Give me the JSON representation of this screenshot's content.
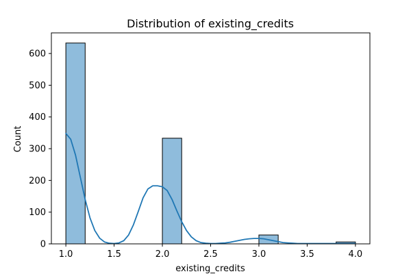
{
  "chart_data": {
    "type": "bar",
    "title": "Distribution of existing_credits",
    "xlabel": "existing_credits",
    "ylabel": "Count",
    "xlim": [
      0.85,
      4.15
    ],
    "ylim": [
      0,
      665
    ],
    "x_ticks": [
      1.0,
      1.5,
      2.0,
      2.5,
      3.0,
      3.5,
      4.0
    ],
    "x_tick_labels": [
      "1.0",
      "1.5",
      "2.0",
      "2.5",
      "3.0",
      "3.5",
      "4.0"
    ],
    "y_ticks": [
      0,
      100,
      200,
      300,
      400,
      500,
      600
    ],
    "y_tick_labels": [
      "0",
      "100",
      "200",
      "300",
      "400",
      "500",
      "600"
    ],
    "bins": [
      {
        "x0": 1.0,
        "x1": 1.2,
        "count": 633
      },
      {
        "x0": 1.2,
        "x1": 1.4,
        "count": 0
      },
      {
        "x0": 1.4,
        "x1": 1.6,
        "count": 0
      },
      {
        "x0": 1.6,
        "x1": 1.8,
        "count": 0
      },
      {
        "x0": 1.8,
        "x1": 2.0,
        "count": 0
      },
      {
        "x0": 2.0,
        "x1": 2.2,
        "count": 333
      },
      {
        "x0": 2.2,
        "x1": 2.4,
        "count": 0
      },
      {
        "x0": 2.4,
        "x1": 2.6,
        "count": 0
      },
      {
        "x0": 2.6,
        "x1": 2.8,
        "count": 0
      },
      {
        "x0": 2.8,
        "x1": 3.0,
        "count": 0
      },
      {
        "x0": 3.0,
        "x1": 3.2,
        "count": 28
      },
      {
        "x0": 3.2,
        "x1": 3.4,
        "count": 0
      },
      {
        "x0": 3.4,
        "x1": 3.6,
        "count": 0
      },
      {
        "x0": 3.6,
        "x1": 3.8,
        "count": 0
      },
      {
        "x0": 3.8,
        "x1": 4.0,
        "count": 6
      }
    ],
    "kde": {
      "x": [
        1.0,
        1.05,
        1.1,
        1.15,
        1.2,
        1.25,
        1.3,
        1.35,
        1.4,
        1.45,
        1.5,
        1.55,
        1.6,
        1.65,
        1.7,
        1.75,
        1.8,
        1.85,
        1.9,
        1.95,
        2.0,
        2.05,
        2.1,
        2.15,
        2.2,
        2.25,
        2.3,
        2.35,
        2.4,
        2.45,
        2.5,
        2.55,
        2.6,
        2.65,
        2.7,
        2.75,
        2.8,
        2.85,
        2.9,
        2.95,
        3.0,
        3.05,
        3.1,
        3.15,
        3.2,
        3.25,
        3.3,
        3.35,
        3.4,
        3.45,
        3.5,
        3.55,
        3.6,
        3.65,
        3.7,
        3.75,
        3.8,
        3.85,
        3.9,
        3.95,
        4.0
      ],
      "y": [
        348,
        330,
        280,
        210,
        140,
        82,
        42,
        18,
        6,
        2,
        1,
        3,
        10,
        28,
        60,
        102,
        145,
        173,
        183,
        183,
        180,
        168,
        140,
        104,
        70,
        42,
        22,
        10,
        4,
        2,
        1,
        1,
        2,
        3,
        5,
        8,
        11,
        14,
        16,
        17,
        17,
        16,
        13,
        10,
        7,
        4,
        3,
        2,
        1,
        1,
        1,
        1,
        1,
        1,
        1,
        1,
        1,
        1,
        1,
        1,
        1
      ]
    },
    "bar_color": "#8fbcdc",
    "bar_edge_color": "#000000",
    "kde_color": "#1f77b4",
    "grid": false,
    "legend": "none"
  }
}
